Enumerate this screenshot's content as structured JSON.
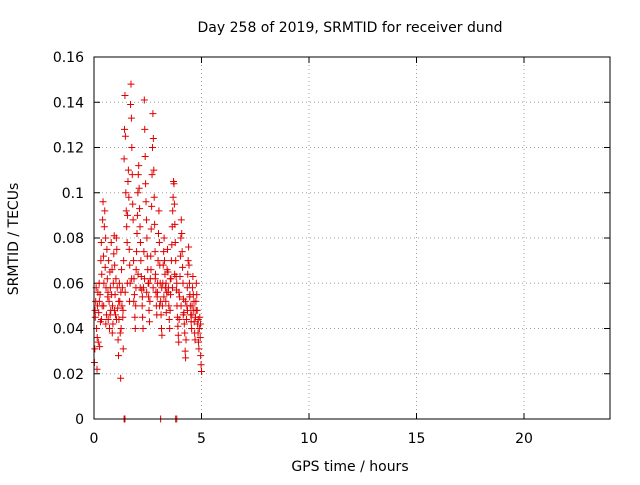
{
  "chart_data": {
    "type": "scatter",
    "title": "Day 258 of 2019, SRMTID for receiver dund",
    "xlabel": "GPS time / hours",
    "ylabel": "SRMTID / TECUs",
    "xlim": [
      0,
      24
    ],
    "ylim": [
      0,
      0.16
    ],
    "x_ticks": [
      0,
      5,
      10,
      15,
      20
    ],
    "x_tick_labels": [
      "0",
      "5",
      "10",
      "15",
      "20"
    ],
    "y_ticks": [
      0,
      0.02,
      0.04,
      0.06,
      0.08,
      0.1,
      0.12,
      0.14,
      0.16
    ],
    "y_tick_labels": [
      "0",
      "0.02",
      "0.04",
      "0.06",
      "0.08",
      "0.1",
      "0.12",
      "0.14",
      "0.16"
    ],
    "grid": true,
    "marker": "+",
    "series_color": "#e00000",
    "series": [
      {
        "name": "SRMTID",
        "points": [
          [
            0.02,
            0.025
          ],
          [
            0.04,
            0.031
          ],
          [
            0.06,
            0.045
          ],
          [
            0.08,
            0.052
          ],
          [
            0.1,
            0.058
          ],
          [
            0.12,
            0.04
          ],
          [
            0.14,
            0.022
          ],
          [
            0.16,
            0.05
          ],
          [
            0.18,
            0.056
          ],
          [
            0.2,
            0.034
          ],
          [
            0.22,
            0.047
          ],
          [
            0.24,
            0.06
          ],
          [
            0.26,
            0.032
          ],
          [
            0.28,
            0.055
          ],
          [
            0.3,
            0.043
          ],
          [
            0.32,
            0.07
          ],
          [
            0.34,
            0.078
          ],
          [
            0.36,
            0.064
          ],
          [
            0.38,
            0.05
          ],
          [
            0.4,
            0.088
          ],
          [
            0.42,
            0.096
          ],
          [
            0.44,
            0.072
          ],
          [
            0.46,
            0.06
          ],
          [
            0.48,
            0.085
          ],
          [
            0.5,
            0.092
          ],
          [
            0.52,
            0.067
          ],
          [
            0.54,
            0.08
          ],
          [
            0.56,
            0.058
          ],
          [
            0.58,
            0.046
          ],
          [
            0.6,
            0.075
          ],
          [
            0.62,
            0.062
          ],
          [
            0.64,
            0.054
          ],
          [
            0.66,
            0.044
          ],
          [
            0.68,
            0.07
          ],
          [
            0.7,
            0.052
          ],
          [
            0.72,
            0.04
          ],
          [
            0.74,
            0.065
          ],
          [
            0.76,
            0.058
          ],
          [
            0.78,
            0.048
          ],
          [
            0.8,
            0.078
          ],
          [
            0.82,
            0.055
          ],
          [
            0.84,
            0.066
          ],
          [
            0.86,
            0.05
          ],
          [
            0.88,
            0.042
          ],
          [
            0.9,
            0.06
          ],
          [
            0.92,
            0.073
          ],
          [
            0.94,
            0.081
          ],
          [
            0.96,
            0.068
          ],
          [
            0.98,
            0.055
          ],
          [
            1.0,
            0.046
          ],
          [
            1.02,
            0.062
          ],
          [
            1.04,
            0.08
          ],
          [
            1.06,
            0.075
          ],
          [
            1.08,
            0.058
          ],
          [
            1.1,
            0.049
          ],
          [
            1.12,
            0.035
          ],
          [
            1.14,
            0.028
          ],
          [
            1.16,
            0.044
          ],
          [
            1.18,
            0.06
          ],
          [
            1.2,
            0.052
          ],
          [
            1.22,
            0.038
          ],
          [
            1.24,
            0.018
          ],
          [
            1.26,
            0.04
          ],
          [
            1.28,
            0.066
          ],
          [
            1.3,
            0.05
          ],
          [
            1.32,
            0.058
          ],
          [
            1.34,
            0.045
          ],
          [
            1.36,
            0.031
          ],
          [
            1.38,
            0.07
          ],
          [
            1.4,
            0.115
          ],
          [
            1.42,
            0.128
          ],
          [
            1.44,
            0.143
          ],
          [
            1.46,
            0.125
          ],
          [
            1.48,
            0.1
          ],
          [
            1.5,
            0.092
          ],
          [
            1.52,
            0.085
          ],
          [
            1.54,
            0.078
          ],
          [
            1.56,
            0.09
          ],
          [
            1.58,
            0.105
          ],
          [
            1.6,
            0.11
          ],
          [
            1.62,
            0.098
          ],
          [
            1.64,
            0.075
          ],
          [
            1.66,
            0.068
          ],
          [
            1.68,
            0.06
          ],
          [
            1.7,
            0.139
          ],
          [
            1.72,
            0.148
          ],
          [
            1.74,
            0.133
          ],
          [
            1.76,
            0.12
          ],
          [
            1.78,
            0.108
          ],
          [
            1.8,
            0.095
          ],
          [
            1.82,
            0.088
          ],
          [
            1.84,
            0.07
          ],
          [
            1.86,
            0.062
          ],
          [
            1.88,
            0.055
          ],
          [
            1.9,
            0.045
          ],
          [
            1.92,
            0.04
          ],
          [
            1.94,
            0.05
          ],
          [
            1.96,
            0.066
          ],
          [
            1.98,
            0.074
          ],
          [
            2.0,
            0.082
          ],
          [
            2.02,
            0.09
          ],
          [
            2.04,
            0.1
          ],
          [
            2.06,
            0.108
          ],
          [
            2.08,
            0.112
          ],
          [
            2.1,
            0.102
          ],
          [
            2.12,
            0.093
          ],
          [
            2.14,
            0.085
          ],
          [
            2.16,
            0.078
          ],
          [
            2.18,
            0.07
          ],
          [
            2.2,
            0.063
          ],
          [
            2.22,
            0.057
          ],
          [
            2.24,
            0.05
          ],
          [
            2.26,
            0.045
          ],
          [
            2.28,
            0.04
          ],
          [
            2.3,
            0.058
          ],
          [
            2.32,
            0.074
          ],
          [
            2.34,
            0.141
          ],
          [
            2.36,
            0.128
          ],
          [
            2.38,
            0.116
          ],
          [
            2.4,
            0.104
          ],
          [
            2.42,
            0.096
          ],
          [
            2.44,
            0.088
          ],
          [
            2.46,
            0.08
          ],
          [
            2.48,
            0.072
          ],
          [
            2.5,
            0.066
          ],
          [
            2.52,
            0.06
          ],
          [
            2.54,
            0.054
          ],
          [
            2.56,
            0.048
          ],
          [
            2.58,
            0.043
          ],
          [
            2.6,
            0.052
          ],
          [
            2.62,
            0.062
          ],
          [
            2.64,
            0.072
          ],
          [
            2.66,
            0.084
          ],
          [
            2.68,
            0.094
          ],
          [
            2.7,
            0.108
          ],
          [
            2.72,
            0.12
          ],
          [
            2.74,
            0.135
          ],
          [
            2.76,
            0.124
          ],
          [
            2.78,
            0.11
          ],
          [
            2.8,
            0.098
          ],
          [
            2.82,
            0.086
          ],
          [
            2.84,
            0.074
          ],
          [
            2.86,
            0.064
          ],
          [
            2.88,
            0.056
          ],
          [
            2.9,
            0.05
          ],
          [
            2.92,
            0.046
          ],
          [
            2.94,
            0.054
          ],
          [
            2.96,
            0.06
          ],
          [
            2.98,
            0.07
          ],
          [
            3.0,
            0.082
          ],
          [
            3.02,
            0.092
          ],
          [
            3.04,
            0.078
          ],
          [
            3.06,
            0.068
          ],
          [
            3.08,
            0.06
          ],
          [
            3.1,
            0.052
          ],
          [
            3.12,
            0.046
          ],
          [
            3.14,
            0.04
          ],
          [
            3.16,
            0.037
          ],
          [
            3.18,
            0.05
          ],
          [
            3.2,
            0.06
          ],
          [
            3.22,
            0.068
          ],
          [
            3.24,
            0.074
          ],
          [
            3.26,
            0.08
          ],
          [
            3.28,
            0.07
          ],
          [
            3.3,
            0.064
          ],
          [
            3.32,
            0.058
          ],
          [
            3.34,
            0.052
          ],
          [
            3.36,
            0.047
          ],
          [
            3.38,
            0.056
          ],
          [
            3.4,
            0.066
          ],
          [
            3.42,
            0.075
          ],
          [
            3.44,
            0.065
          ],
          [
            3.46,
            0.058
          ],
          [
            3.48,
            0.05
          ],
          [
            3.5,
            0.044
          ],
          [
            3.52,
            0.04
          ],
          [
            3.54,
            0.048
          ],
          [
            3.56,
            0.055
          ],
          [
            3.58,
            0.062
          ],
          [
            3.6,
            0.07
          ],
          [
            3.62,
            0.077
          ],
          [
            3.64,
            0.085
          ],
          [
            3.66,
            0.092
          ],
          [
            3.68,
            0.098
          ],
          [
            3.7,
            0.105
          ],
          [
            3.72,
            0.104
          ],
          [
            3.74,
            0.095
          ],
          [
            3.76,
            0.086
          ],
          [
            3.78,
            0.078
          ],
          [
            3.8,
            0.07
          ],
          [
            3.82,
            0.063
          ],
          [
            3.84,
            0.057
          ],
          [
            3.86,
            0.05
          ],
          [
            3.88,
            0.045
          ],
          [
            3.9,
            0.041
          ],
          [
            3.92,
            0.037
          ],
          [
            3.94,
            0.034
          ],
          [
            3.96,
            0.044
          ],
          [
            3.98,
            0.054
          ],
          [
            4.0,
            0.063
          ],
          [
            4.02,
            0.072
          ],
          [
            4.04,
            0.08
          ],
          [
            4.06,
            0.088
          ],
          [
            4.08,
            0.082
          ],
          [
            4.1,
            0.074
          ],
          [
            4.12,
            0.067
          ],
          [
            4.14,
            0.06
          ],
          [
            4.16,
            0.053
          ],
          [
            4.18,
            0.047
          ],
          [
            4.2,
            0.042
          ],
          [
            4.22,
            0.038
          ],
          [
            4.24,
            0.03
          ],
          [
            4.26,
            0.027
          ],
          [
            4.28,
            0.035
          ],
          [
            4.3,
            0.044
          ],
          [
            4.32,
            0.05
          ],
          [
            4.34,
            0.058
          ],
          [
            4.36,
            0.064
          ],
          [
            4.38,
            0.07
          ],
          [
            4.4,
            0.076
          ],
          [
            4.42,
            0.068
          ],
          [
            4.44,
            0.06
          ],
          [
            4.46,
            0.055
          ],
          [
            4.48,
            0.05
          ],
          [
            4.5,
            0.046
          ],
          [
            4.52,
            0.043
          ],
          [
            4.54,
            0.04
          ],
          [
            4.56,
            0.05
          ],
          [
            4.58,
            0.058
          ],
          [
            4.6,
            0.063
          ],
          [
            4.62,
            0.055
          ],
          [
            4.64,
            0.048
          ],
          [
            4.66,
            0.043
          ],
          [
            4.68,
            0.038
          ],
          [
            4.7,
            0.035
          ],
          [
            4.72,
            0.045
          ],
          [
            4.74,
            0.052
          ],
          [
            4.76,
            0.06
          ],
          [
            4.78,
            0.055
          ],
          [
            4.8,
            0.048
          ],
          [
            4.82,
            0.042
          ],
          [
            4.84,
            0.038
          ],
          [
            4.86,
            0.034
          ],
          [
            4.88,
            0.031
          ],
          [
            4.9,
            0.04
          ],
          [
            4.92,
            0.045
          ],
          [
            4.94,
            0.036
          ],
          [
            4.96,
            0.028
          ],
          [
            4.98,
            0.024
          ],
          [
            5.0,
            0.021
          ],
          [
            0.05,
            0.048
          ],
          [
            0.15,
            0.036
          ],
          [
            0.25,
            0.052
          ],
          [
            0.35,
            0.044
          ],
          [
            0.45,
            0.05
          ],
          [
            0.55,
            0.042
          ],
          [
            0.65,
            0.056
          ],
          [
            0.75,
            0.046
          ],
          [
            0.85,
            0.038
          ],
          [
            0.95,
            0.048
          ],
          [
            1.05,
            0.044
          ],
          [
            1.15,
            0.052
          ],
          [
            1.25,
            0.056
          ],
          [
            1.35,
            0.048
          ],
          [
            1.45,
            0.056
          ],
          [
            1.55,
            0.06
          ],
          [
            1.65,
            0.052
          ],
          [
            1.75,
            0.062
          ],
          [
            1.85,
            0.052
          ],
          [
            1.95,
            0.058
          ],
          [
            2.05,
            0.064
          ],
          [
            2.15,
            0.058
          ],
          [
            2.25,
            0.054
          ],
          [
            2.35,
            0.062
          ],
          [
            2.45,
            0.056
          ],
          [
            2.55,
            0.06
          ],
          [
            2.65,
            0.066
          ],
          [
            2.75,
            0.058
          ],
          [
            2.85,
            0.062
          ],
          [
            2.95,
            0.056
          ],
          [
            3.05,
            0.05
          ],
          [
            3.15,
            0.058
          ],
          [
            3.25,
            0.054
          ],
          [
            3.35,
            0.06
          ],
          [
            3.45,
            0.056
          ],
          [
            3.55,
            0.062
          ],
          [
            3.65,
            0.058
          ],
          [
            3.75,
            0.064
          ],
          [
            3.85,
            0.06
          ],
          [
            3.95,
            0.056
          ],
          [
            4.05,
            0.05
          ],
          [
            4.15,
            0.046
          ],
          [
            4.25,
            0.052
          ],
          [
            4.35,
            0.048
          ],
          [
            4.45,
            0.054
          ],
          [
            4.55,
            0.046
          ],
          [
            4.65,
            0.052
          ],
          [
            4.75,
            0.048
          ],
          [
            4.85,
            0.044
          ],
          [
            4.95,
            0.042
          ],
          [
            1.4,
            0.0
          ],
          [
            3.1,
            0.0
          ],
          [
            3.8,
            0.0
          ],
          [
            1.44,
            0.0
          ],
          [
            3.85,
            0.0
          ]
        ]
      }
    ]
  }
}
